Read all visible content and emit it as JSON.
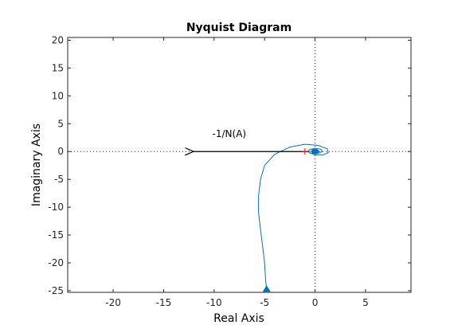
{
  "chart_data": {
    "type": "line",
    "title": "Nyquist Diagram",
    "xlabel": "Real Axis",
    "ylabel": "Imaginary Axis",
    "xlim": [
      -24.5,
      9.5
    ],
    "ylim": [
      -25.3,
      20.5
    ],
    "xticks": [
      -20,
      -15,
      -10,
      -5,
      0,
      5
    ],
    "yticks": [
      -25,
      -20,
      -15,
      -10,
      -5,
      0,
      5,
      10,
      15,
      20
    ],
    "grid": false,
    "series": [
      {
        "color": "#0072BD",
        "points": [
          [
            -4.8,
            -25.0
          ],
          [
            -4.9,
            -23.0
          ],
          [
            -5.0,
            -20.0
          ],
          [
            -5.2,
            -17.0
          ],
          [
            -5.4,
            -14.0
          ],
          [
            -5.6,
            -11.0
          ],
          [
            -5.6,
            -8.0
          ],
          [
            -5.4,
            -5.0
          ],
          [
            -5.0,
            -2.5
          ],
          [
            -4.0,
            -0.5
          ],
          [
            -2.5,
            0.8
          ],
          [
            -1.0,
            1.3
          ],
          [
            0.3,
            1.1
          ],
          [
            1.2,
            0.5
          ],
          [
            1.3,
            -0.2
          ],
          [
            0.8,
            -0.6
          ],
          [
            0.0,
            -0.6
          ],
          [
            -0.6,
            -0.2
          ],
          [
            -0.6,
            0.3
          ],
          [
            0.0,
            0.6
          ],
          [
            0.6,
            0.4
          ],
          [
            0.7,
            0.0
          ],
          [
            0.4,
            -0.3
          ],
          [
            -0.1,
            -0.3
          ],
          [
            -0.35,
            0.0
          ],
          [
            -0.2,
            0.25
          ],
          [
            0.2,
            0.25
          ],
          [
            0.4,
            0.0
          ],
          [
            0.2,
            -0.2
          ],
          [
            -0.15,
            -0.15
          ],
          [
            -0.2,
            0.1
          ],
          [
            0.1,
            0.15
          ],
          [
            0.25,
            0.0
          ],
          [
            0.05,
            -0.1
          ],
          [
            -0.1,
            0.0
          ]
        ]
      }
    ],
    "arrow_marker": [
      -4.8,
      -24.9
    ],
    "critical_point": [
      -1,
      0
    ],
    "annotation": {
      "text": "-1/N(A)",
      "from": [
        -0.6,
        0
      ],
      "to": [
        -12.2,
        0
      ],
      "label_pos": [
        -8.5,
        2.6
      ]
    }
  }
}
